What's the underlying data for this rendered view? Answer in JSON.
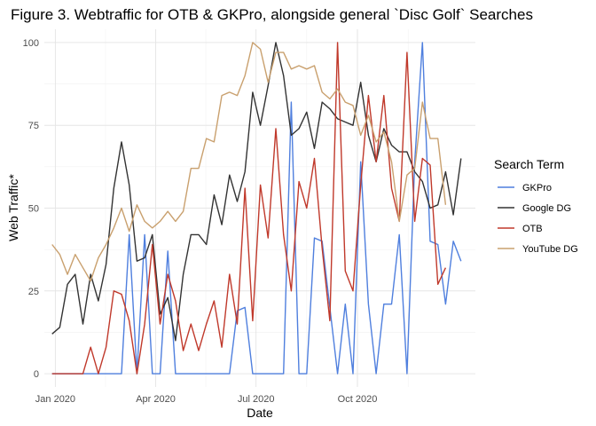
{
  "chart_data": {
    "type": "line",
    "title": "Figure 3. Webtraffic for OTB & GKPro, alongside general `Disc Golf` Searches",
    "xlabel": "Date",
    "ylabel": "Web Traffic*",
    "xlim": [
      "2019-12-22",
      "2021-01-16"
    ],
    "ylim": [
      -4,
      104
    ],
    "x_ticks": [
      {
        "date": "2020-01-01",
        "label": "Jan 2020"
      },
      {
        "date": "2020-04-01",
        "label": "Apr 2020"
      },
      {
        "date": "2020-07-01",
        "label": "Jul 2020"
      },
      {
        "date": "2020-10-01",
        "label": "Oct 2020"
      }
    ],
    "y_ticks": [
      0,
      25,
      50,
      75,
      100
    ],
    "grid": true,
    "legend": {
      "title": "Search Term",
      "position": "right"
    },
    "x": [
      "2019-12-29",
      "2020-01-05",
      "2020-01-12",
      "2020-01-19",
      "2020-01-26",
      "2020-02-02",
      "2020-02-09",
      "2020-02-16",
      "2020-02-23",
      "2020-03-01",
      "2020-03-08",
      "2020-03-15",
      "2020-03-22",
      "2020-03-29",
      "2020-04-05",
      "2020-04-12",
      "2020-04-19",
      "2020-04-26",
      "2020-05-03",
      "2020-05-10",
      "2020-05-17",
      "2020-05-24",
      "2020-05-31",
      "2020-06-07",
      "2020-06-14",
      "2020-06-21",
      "2020-06-28",
      "2020-07-05",
      "2020-07-12",
      "2020-07-19",
      "2020-07-26",
      "2020-08-02",
      "2020-08-09",
      "2020-08-16",
      "2020-08-23",
      "2020-08-30",
      "2020-09-06",
      "2020-09-13",
      "2020-09-20",
      "2020-09-27",
      "2020-10-04",
      "2020-10-11",
      "2020-10-18",
      "2020-10-25",
      "2020-11-01",
      "2020-11-08",
      "2020-11-15",
      "2020-11-22",
      "2020-11-29",
      "2020-12-06",
      "2020-12-13",
      "2020-12-20",
      "2020-12-27",
      "2021-01-03",
      "2021-01-10"
    ],
    "series": [
      {
        "name": "GKPro",
        "color": "#4f7fde",
        "values": [
          0,
          0,
          0,
          0,
          0,
          0,
          0,
          0,
          0,
          0,
          42,
          0,
          42,
          0,
          0,
          37,
          0,
          0,
          0,
          0,
          0,
          0,
          0,
          0,
          19,
          20,
          0,
          0,
          0,
          0,
          0,
          82,
          0,
          0,
          41,
          40,
          20,
          0,
          21,
          0,
          64,
          21,
          0,
          21,
          21,
          42,
          0,
          64,
          100,
          40,
          39,
          21,
          40,
          34,
          null
        ]
      },
      {
        "name": "Google DG",
        "color": "#333333",
        "values": [
          12,
          14,
          27,
          30,
          15,
          30,
          22,
          33,
          56,
          70,
          57,
          34,
          35,
          42,
          18,
          23,
          10,
          30,
          42,
          42,
          39,
          54,
          45,
          60,
          52,
          61,
          85,
          75,
          87,
          100,
          90,
          72,
          74,
          79,
          68,
          82,
          80,
          77,
          76,
          75,
          88,
          72,
          64,
          74,
          69,
          67,
          67,
          61,
          58,
          50,
          51,
          61,
          48,
          65,
          null
        ]
      },
      {
        "name": "OTB",
        "color": "#c0392b",
        "values": [
          0,
          0,
          0,
          0,
          0,
          8,
          0,
          8,
          25,
          24,
          16,
          0,
          15,
          39,
          15,
          30,
          22,
          7,
          15,
          7,
          15,
          22,
          8,
          30,
          15,
          56,
          16,
          57,
          41,
          74,
          42,
          25,
          58,
          50,
          65,
          38,
          16,
          100,
          31,
          25,
          57,
          84,
          64,
          84,
          56,
          46,
          97,
          46,
          65,
          63,
          27,
          32,
          null,
          null,
          null
        ]
      },
      {
        "name": "YouTube DG",
        "color": "#c9a06e",
        "values": [
          39,
          36,
          30,
          36,
          32,
          28,
          35,
          39,
          44,
          50,
          43,
          51,
          46,
          44,
          46,
          49,
          46,
          49,
          62,
          62,
          71,
          70,
          84,
          85,
          84,
          90,
          100,
          98,
          88,
          97,
          97,
          92,
          93,
          92,
          93,
          85,
          83,
          86,
          82,
          81,
          72,
          78,
          70,
          73,
          64,
          46,
          60,
          62,
          82,
          71,
          71,
          51,
          null,
          null,
          null
        ]
      }
    ]
  }
}
